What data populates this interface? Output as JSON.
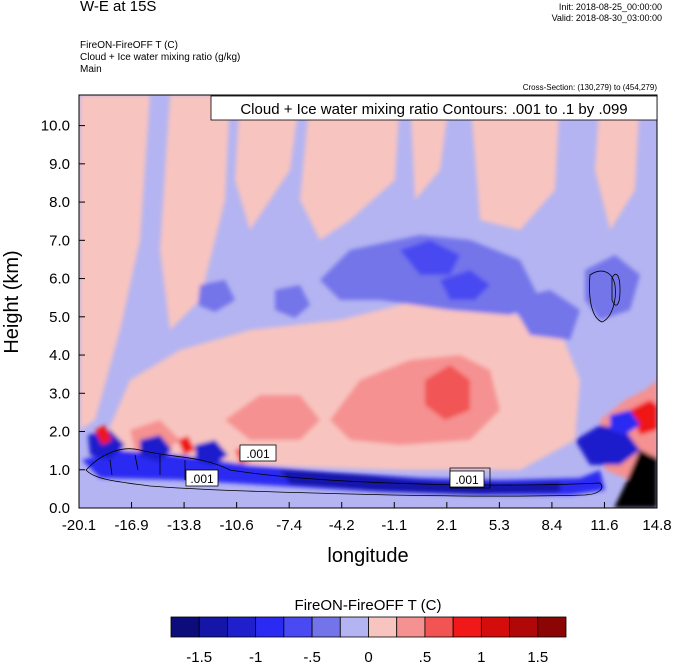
{
  "header": {
    "title": "W-E at 15S",
    "init": "Init: 2018-08-25_00:00:00",
    "valid": "Valid: 2018-08-30_03:00:00",
    "subtitle_1": "FireON-FireOFF T   (C)",
    "subtitle_2": "Cloud + Ice water mixing ratio   (g/kg)",
    "subtitle_3": "Main",
    "cross_section": "Cross-Section: (130,279) to (454,279)"
  },
  "chart_data": {
    "type": "heatmap",
    "contour_label": "Cloud + Ice water mixing ratio Contours: .001 to .1 by .099",
    "contour_level_labels": [
      ".001",
      ".001",
      ".001"
    ],
    "xlabel": "longitude",
    "ylabel": "Height (km)",
    "x_ticks": [
      "-20.1",
      "-16.9",
      "-13.8",
      "-10.6",
      "-7.4",
      "-4.2",
      "-1.1",
      "2.1",
      "5.3",
      "8.4",
      "11.6",
      "14.8"
    ],
    "y_ticks": [
      "0.0",
      "1.0",
      "2.0",
      "3.0",
      "4.0",
      "5.0",
      "6.0",
      "7.0",
      "8.0",
      "9.0",
      "10.0"
    ],
    "xlim": [
      -20.1,
      14.8
    ],
    "ylim": [
      0,
      10.8
    ],
    "colorbar": {
      "title": "FireON-FireOFF T  (C)",
      "labels": [
        "-1.5",
        "-1",
        "-.5",
        "0",
        ".5",
        "1",
        "1.5"
      ],
      "levels": [
        -1.75,
        -1.5,
        -1.25,
        -1,
        -0.75,
        -0.5,
        -0.25,
        0,
        0.25,
        0.5,
        0.75,
        1,
        1.25,
        1.5,
        1.75
      ],
      "colors": [
        "#0c0c7a",
        "#1515a8",
        "#1f1fcc",
        "#2a2af2",
        "#4a4af2",
        "#7474ea",
        "#b4b4f2",
        "#f8c4c0",
        "#f59191",
        "#f25454",
        "#f01818",
        "#d40c0c",
        "#b00808",
        "#8c0505"
      ]
    }
  }
}
